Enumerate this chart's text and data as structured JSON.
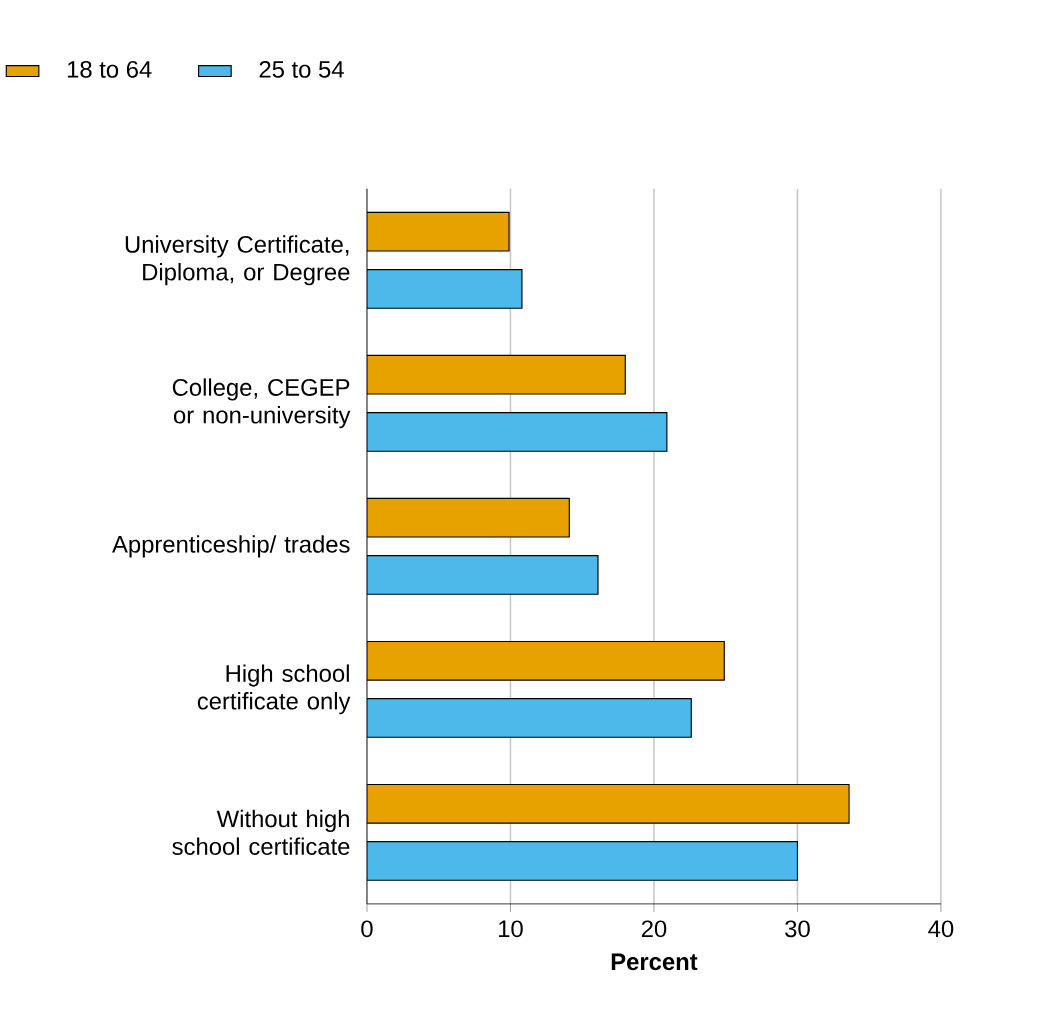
{
  "chart_data": {
    "type": "bar",
    "orientation": "horizontal",
    "xlabel": "Percent",
    "categories": [
      "University Certificate, Diploma, or Degree",
      "College, CEGEP or non-university",
      "Apprenticeship/ trades",
      "High school certificate only",
      "Without high school certificate"
    ],
    "series": [
      {
        "name": "18 to 64",
        "color": "#e8a200",
        "values": [
          9.9,
          18.0,
          14.1,
          24.9,
          33.6
        ]
      },
      {
        "name": "25 to 54",
        "color": "#4db8ea",
        "values": [
          10.8,
          20.9,
          16.1,
          22.6,
          30.0
        ]
      }
    ],
    "xlim": [
      0,
      40
    ],
    "xticks": [
      0,
      10,
      20,
      30,
      40
    ],
    "grid": "x",
    "legend": "top left"
  }
}
